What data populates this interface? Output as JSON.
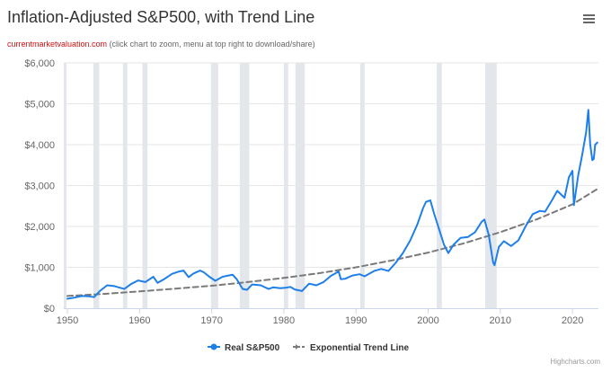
{
  "header": {
    "title": "Inflation-Adjusted S&P500, with Trend Line",
    "source_link": "currentmarketvaluation.com",
    "source_note": "(click chart to zoom, menu at top right to download/share)"
  },
  "credits": "Highcharts.com",
  "colors": {
    "real": "#1f7fe8",
    "trend": "#7a7a7a",
    "recession": "#e3e6ea",
    "grid": "#e6e6e6",
    "menu": "#666666"
  },
  "icons": {
    "menu": "hamburger-menu-icon"
  },
  "chart_data": {
    "type": "line",
    "title": "Inflation-Adjusted S&P500, with Trend Line",
    "xlabel": "",
    "ylabel": "",
    "xlim": [
      1949.5,
      2023.6
    ],
    "ylim": [
      0,
      6000
    ],
    "x_ticks": [
      1950,
      1960,
      1970,
      1980,
      1990,
      2000,
      2010,
      2020
    ],
    "x_tick_labels": [
      "1950",
      "1960",
      "1970",
      "1980",
      "1990",
      "2000",
      "2010",
      "2020"
    ],
    "y_ticks": [
      0,
      1000,
      2000,
      3000,
      4000,
      5000,
      6000
    ],
    "y_tick_labels": [
      "$0",
      "$1,000",
      "$2,000",
      "$3,000",
      "$4,000",
      "$5,000",
      "$6,000"
    ],
    "legend": [
      "Real S&P500",
      "Exponential Trend Line"
    ],
    "legend_position": "bottom-center",
    "grid": true,
    "recessions": [
      [
        1949.5,
        1949.8
      ],
      [
        1953.6,
        1954.4
      ],
      [
        1957.7,
        1958.3
      ],
      [
        1960.4,
        1961.1
      ],
      [
        1969.9,
        1970.9
      ],
      [
        1973.9,
        1975.2
      ],
      [
        1980.0,
        1980.6
      ],
      [
        1981.6,
        1982.9
      ],
      [
        1990.6,
        1991.2
      ],
      [
        2001.2,
        2001.9
      ],
      [
        2007.9,
        2009.5
      ]
    ],
    "series": [
      {
        "name": "Real S&P500",
        "x": [
          1950,
          1951,
          1952,
          1953,
          1953.7,
          1954.5,
          1955.5,
          1956.5,
          1957.9,
          1958.8,
          1959.8,
          1960.8,
          1961.9,
          1962.5,
          1963.5,
          1964.5,
          1965.5,
          1966.1,
          1966.8,
          1967.5,
          1968.4,
          1968.9,
          1969.6,
          1970.5,
          1971.5,
          1972.9,
          1973.5,
          1974.3,
          1974.9,
          1975.6,
          1976.8,
          1977.9,
          1978.5,
          1979.5,
          1980.2,
          1980.9,
          1981.5,
          1982.5,
          1983.5,
          1984.5,
          1985.5,
          1986.5,
          1987.6,
          1987.9,
          1988.5,
          1989.5,
          1990.5,
          1991.2,
          1992.5,
          1993.5,
          1994.5,
          1995.5,
          1996.5,
          1997.5,
          1998.5,
          1999.3,
          1999.7,
          2000.3,
          2000.8,
          2001.4,
          2002.2,
          2002.8,
          2003.5,
          2004.5,
          2005.5,
          2006.5,
          2007.4,
          2007.8,
          2008.4,
          2009.0,
          2009.2,
          2009.8,
          2010.5,
          2011.5,
          2012.5,
          2013.5,
          2014.5,
          2015.5,
          2016.2,
          2017.2,
          2017.9,
          2018.9,
          2019.5,
          2020.0,
          2020.2,
          2020.8,
          2021.3,
          2021.6,
          2021.9,
          2022.2,
          2022.45,
          2022.75,
          2022.95,
          2023.15,
          2023.45
        ],
        "values": [
          230,
          260,
          300,
          290,
          270,
          420,
          560,
          540,
          470,
          590,
          680,
          640,
          770,
          620,
          720,
          840,
          900,
          920,
          760,
          850,
          920,
          880,
          780,
          670,
          770,
          820,
          700,
          470,
          450,
          580,
          560,
          470,
          510,
          490,
          500,
          520,
          460,
          420,
          600,
          560,
          640,
          790,
          900,
          710,
          720,
          800,
          830,
          780,
          910,
          960,
          910,
          1110,
          1350,
          1650,
          2050,
          2450,
          2600,
          2640,
          2330,
          2000,
          1550,
          1350,
          1550,
          1720,
          1740,
          1860,
          2110,
          2170,
          1800,
          1120,
          1050,
          1500,
          1640,
          1520,
          1660,
          2000,
          2300,
          2380,
          2360,
          2650,
          2870,
          2700,
          3200,
          3360,
          2520,
          3250,
          3700,
          4000,
          4300,
          4850,
          4020,
          3620,
          3650,
          4000,
          4050
        ]
      },
      {
        "name": "Exponential Trend Line",
        "x": [
          1950,
          1955,
          1960,
          1965,
          1970,
          1975,
          1980,
          1985,
          1990,
          1995,
          2000,
          2005,
          2010,
          2015,
          2020,
          2023.5
        ],
        "values": [
          300,
          350,
          410,
          480,
          550,
          640,
          740,
          860,
          1000,
          1170,
          1360,
          1590,
          1860,
          2170,
          2540,
          2920
        ]
      }
    ]
  }
}
